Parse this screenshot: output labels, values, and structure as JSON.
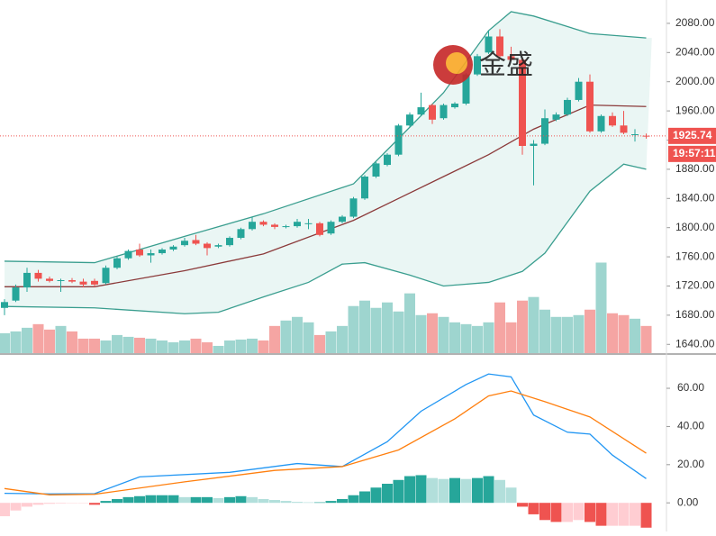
{
  "chart_data": [
    {
      "type": "candlestick",
      "watermark": "金盛",
      "ylim": [
        1628,
        2112
      ],
      "yticks": [
        {
          "value": 1640,
          "label": "1640.00"
        },
        {
          "value": 1680,
          "label": "1680.00"
        },
        {
          "value": 1720,
          "label": "1720.00"
        },
        {
          "value": 1760,
          "label": "1760.00"
        },
        {
          "value": 1800,
          "label": "1800.00"
        },
        {
          "value": 1840,
          "label": "1840.00"
        },
        {
          "value": 1880,
          "label": "1880.00"
        },
        {
          "value": 1920,
          "label": "1920.00"
        },
        {
          "value": 1960,
          "label": "1960.00"
        },
        {
          "value": 2000,
          "label": "2000.00"
        },
        {
          "value": 2040,
          "label": "2040.00"
        },
        {
          "value": 2080,
          "label": "2080.00"
        }
      ],
      "last_price": 1925.74,
      "last_time": "19:57:11",
      "up_color": "#26a69a",
      "down_color": "#ef5350",
      "volume_up_color": "#9ed5cf",
      "volume_down_color": "#f5a5a3",
      "open": [
        1690,
        1700,
        1718,
        1738,
        1730,
        1727,
        1728,
        1726,
        1727,
        1724,
        1745,
        1758,
        1770,
        1762,
        1765,
        1770,
        1776,
        1783,
        1778,
        1774,
        1776,
        1786,
        1798,
        1808,
        1804,
        1801,
        1802,
        1806,
        1806,
        1792,
        1808,
        1815,
        1840,
        1870,
        1886,
        1900,
        1940,
        1955,
        1968,
        1950,
        1965,
        1970,
        2010,
        2040,
        2062,
        2035,
        2030,
        1912,
        1915,
        1948,
        1955,
        1975,
        2000,
        1932,
        1953,
        1940,
        1928,
        1926
      ],
      "high": [
        1702,
        1722,
        1745,
        1742,
        1733,
        1730,
        1731,
        1730,
        1730,
        1748,
        1760,
        1770,
        1778,
        1770,
        1772,
        1776,
        1786,
        1790,
        1780,
        1778,
        1788,
        1800,
        1815,
        1810,
        1806,
        1804,
        1812,
        1812,
        1808,
        1810,
        1817,
        1842,
        1872,
        1890,
        1902,
        1942,
        1958,
        1985,
        1970,
        1970,
        1972,
        2012,
        2038,
        2070,
        2072,
        2048,
        2032,
        1920,
        1962,
        1958,
        1978,
        2005,
        2010,
        1955,
        1958,
        1960,
        1935,
        1929
      ],
      "low": [
        1680,
        1698,
        1712,
        1726,
        1725,
        1712,
        1724,
        1718,
        1719,
        1722,
        1743,
        1756,
        1760,
        1752,
        1763,
        1768,
        1774,
        1776,
        1762,
        1772,
        1774,
        1784,
        1796,
        1802,
        1798,
        1799,
        1800,
        1798,
        1788,
        1790,
        1806,
        1813,
        1838,
        1868,
        1884,
        1898,
        1938,
        1953,
        1942,
        1948,
        1963,
        1968,
        2008,
        2038,
        2033,
        2028,
        1900,
        1858,
        1913,
        1946,
        1953,
        1973,
        1930,
        1930,
        1938,
        1928,
        1918,
        1922
      ],
      "close": [
        1698,
        1718,
        1738,
        1730,
        1727,
        1728,
        1726,
        1722,
        1722,
        1745,
        1758,
        1768,
        1762,
        1765,
        1770,
        1774,
        1782,
        1778,
        1772,
        1776,
        1786,
        1798,
        1808,
        1804,
        1801,
        1802,
        1808,
        1806,
        1790,
        1808,
        1815,
        1840,
        1870,
        1888,
        1900,
        1940,
        1955,
        1965,
        1948,
        1968,
        1970,
        2010,
        2035,
        2062,
        2035,
        2030,
        1912,
        1915,
        1950,
        1955,
        1975,
        2000,
        1932,
        1953,
        1940,
        1930,
        1928,
        1925.74
      ],
      "volume_ylim": [
        0,
        390
      ],
      "volume": [
        22,
        24,
        28,
        32,
        26,
        30,
        24,
        16,
        16,
        14,
        20,
        18,
        17,
        16,
        14,
        12,
        14,
        16,
        12,
        8,
        14,
        15,
        16,
        14,
        30,
        36,
        40,
        34,
        20,
        24,
        30,
        52,
        58,
        50,
        56,
        46,
        66,
        42,
        44,
        40,
        34,
        32,
        30,
        34,
        56,
        34,
        58,
        62,
        48,
        40,
        40,
        42,
        48,
        100,
        44,
        42,
        38,
        30
      ],
      "band_fill": "#eaf6f4",
      "series": [
        {
          "name": "upper",
          "color": "#3a9e8f",
          "x": [
            0,
            8,
            16,
            23,
            31,
            35,
            39,
            43,
            45,
            47,
            52,
            57
          ],
          "values": [
            1754,
            1752,
            1788,
            1819,
            1860,
            1922,
            1985,
            2070,
            2096,
            2090,
            2066,
            2060
          ]
        },
        {
          "name": "middle",
          "color": "#8b3a3a",
          "x": [
            0,
            8,
            16,
            23,
            31,
            35,
            39,
            43,
            47,
            52,
            57
          ],
          "values": [
            1719,
            1719,
            1741,
            1764,
            1810,
            1840,
            1870,
            1900,
            1935,
            1968,
            1966
          ]
        },
        {
          "name": "lower",
          "color": "#3a9e8f",
          "x": [
            0,
            8,
            16,
            19,
            23,
            27,
            30,
            32,
            36,
            39,
            43,
            46,
            48,
            52,
            55,
            57
          ],
          "values": [
            1692,
            1690,
            1682,
            1684,
            1705,
            1725,
            1750,
            1752,
            1735,
            1720,
            1725,
            1740,
            1765,
            1850,
            1887,
            1880
          ]
        }
      ]
    },
    {
      "type": "macd",
      "ylim": [
        -15,
        77
      ],
      "yticks": [
        {
          "value": 0,
          "label": "0.00"
        },
        {
          "value": 20,
          "label": "20.00"
        },
        {
          "value": 40,
          "label": "40.00"
        },
        {
          "value": 60,
          "label": "60.00"
        }
      ],
      "hist_colors": [
        "#26a69a",
        "#b2dfdb",
        "#ffcdd2",
        "#ef5350"
      ],
      "histogram": [
        -7,
        -4,
        -2,
        -1,
        -0.5,
        -0.3,
        -0.2,
        -0.2,
        -1,
        1,
        2,
        3,
        3.5,
        4,
        4,
        4,
        3,
        3,
        3,
        2.5,
        3,
        3.5,
        3,
        2,
        1.5,
        1,
        0.5,
        0.3,
        0.3,
        1,
        2,
        4,
        6,
        8,
        10,
        12,
        14,
        14.5,
        13,
        12.5,
        13,
        12.5,
        13,
        14,
        12,
        8,
        -2,
        -6,
        -9,
        -10,
        -10,
        -9,
        -10,
        -12,
        -12,
        -12,
        -12,
        -13
      ],
      "series": [
        {
          "name": "DIF",
          "color": "#2196f3",
          "x": [
            0,
            4,
            8,
            12,
            20,
            26,
            30,
            34,
            37,
            41,
            43,
            45,
            47,
            50,
            52,
            54,
            57
          ],
          "values": [
            5,
            4.7,
            4.8,
            13.6,
            16,
            20.6,
            19,
            32,
            48,
            62,
            67.5,
            66,
            46,
            37,
            36,
            25,
            12.7
          ]
        },
        {
          "name": "DEA",
          "color": "#ff7f0e",
          "x": [
            0,
            4,
            8,
            16,
            24,
            30,
            35,
            40,
            43,
            45,
            48,
            52,
            57
          ],
          "values": [
            7.5,
            4.2,
            4.5,
            11,
            17,
            19,
            27.7,
            44,
            56,
            58.6,
            53,
            45,
            26
          ]
        }
      ]
    }
  ]
}
